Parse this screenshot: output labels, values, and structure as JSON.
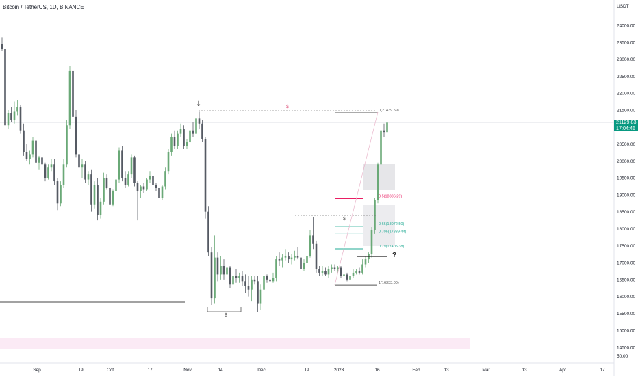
{
  "symbol_title": "Bitcoin / TetherUS, 1D, BINANCE",
  "currency": "USDT",
  "current_price": "21129.83",
  "countdown": "17:04:46",
  "volume_label": "50.00",
  "colors": {
    "up": "#6aa977",
    "down": "#555a63",
    "accent": "#089981",
    "fib_red": "#e91e63",
    "fib_green": "#22ab94"
  },
  "chart_data": {
    "type": "candlestick",
    "title": "Bitcoin / TetherUS, 1D, BINANCE",
    "ylim": [
      14400,
      24800
    ],
    "y_ticks": [
      "24000.00",
      "23500.00",
      "23000.00",
      "22500.00",
      "22000.00",
      "21500.00",
      "21000.00",
      "20500.00",
      "20000.00",
      "19500.00",
      "19000.00",
      "18500.00",
      "18000.00",
      "17500.00",
      "17000.00",
      "16500.00",
      "16000.00",
      "15500.00",
      "15000.00",
      "14500.00"
    ],
    "x_ticks": [
      "Sep",
      "19",
      "Oct",
      "17",
      "Nov",
      "14",
      "Dec",
      "19",
      "2023",
      "16",
      "Feb",
      "13",
      "Mar",
      "13",
      "Apr",
      "17"
    ],
    "grid": false,
    "fib_levels": [
      {
        "label": "0(21439.59)",
        "value": 21439.59,
        "color": "#555"
      },
      {
        "label": "0.5(18886.29)",
        "value": 18886.29,
        "color": "#e91e63"
      },
      {
        "label": "0.66(18072.50)",
        "value": 18072.5,
        "color": "#22ab94"
      },
      {
        "label": "0.705(17839.44)",
        "value": 17839.44,
        "color": "#22ab94"
      },
      {
        "label": "0.79(17405.38)",
        "value": 17405.38,
        "color": "#22ab94"
      },
      {
        "label": "1(16333.00)",
        "value": 16333.0,
        "color": "#555"
      }
    ],
    "annotations": [
      "$",
      "$",
      "$",
      "?"
    ],
    "candles": [
      {
        "o": 23450,
        "h": 23650,
        "l": 23250,
        "c": 23300
      },
      {
        "o": 23300,
        "h": 23350,
        "l": 20950,
        "c": 21050
      },
      {
        "o": 21050,
        "h": 21500,
        "l": 20950,
        "c": 21400
      },
      {
        "o": 21400,
        "h": 21600,
        "l": 21150,
        "c": 21200
      },
      {
        "o": 21200,
        "h": 21750,
        "l": 21100,
        "c": 21450
      },
      {
        "o": 21450,
        "h": 21800,
        "l": 21350,
        "c": 21600
      },
      {
        "o": 21600,
        "h": 21650,
        "l": 20800,
        "c": 20900
      },
      {
        "o": 20900,
        "h": 21100,
        "l": 20150,
        "c": 20250
      },
      {
        "o": 20250,
        "h": 20500,
        "l": 20000,
        "c": 20050
      },
      {
        "o": 20050,
        "h": 20300,
        "l": 19900,
        "c": 20200
      },
      {
        "o": 20200,
        "h": 20700,
        "l": 20100,
        "c": 20600
      },
      {
        "o": 20600,
        "h": 20750,
        "l": 19900,
        "c": 19950
      },
      {
        "o": 19950,
        "h": 20150,
        "l": 19750,
        "c": 20100
      },
      {
        "o": 20100,
        "h": 20400,
        "l": 19850,
        "c": 19900
      },
      {
        "o": 19900,
        "h": 19950,
        "l": 19400,
        "c": 19500
      },
      {
        "o": 19500,
        "h": 19900,
        "l": 19450,
        "c": 19800
      },
      {
        "o": 19800,
        "h": 20050,
        "l": 19700,
        "c": 19900
      },
      {
        "o": 19900,
        "h": 20050,
        "l": 19300,
        "c": 19400
      },
      {
        "o": 19400,
        "h": 19500,
        "l": 18550,
        "c": 18750
      },
      {
        "o": 18750,
        "h": 19400,
        "l": 18650,
        "c": 19300
      },
      {
        "o": 19300,
        "h": 20050,
        "l": 19200,
        "c": 19900
      },
      {
        "o": 19900,
        "h": 21200,
        "l": 19800,
        "c": 21050
      },
      {
        "o": 21050,
        "h": 22800,
        "l": 20950,
        "c": 22650
      },
      {
        "o": 22650,
        "h": 22850,
        "l": 21100,
        "c": 21300
      },
      {
        "o": 21300,
        "h": 21500,
        "l": 20100,
        "c": 20200
      },
      {
        "o": 20200,
        "h": 20350,
        "l": 19750,
        "c": 19800
      },
      {
        "o": 19800,
        "h": 20050,
        "l": 19500,
        "c": 19900
      },
      {
        "o": 19900,
        "h": 20000,
        "l": 19350,
        "c": 19450
      },
      {
        "o": 19450,
        "h": 19700,
        "l": 19300,
        "c": 19600
      },
      {
        "o": 19600,
        "h": 19750,
        "l": 18500,
        "c": 18700
      },
      {
        "o": 18700,
        "h": 19400,
        "l": 18600,
        "c": 19300
      },
      {
        "o": 19300,
        "h": 19500,
        "l": 18250,
        "c": 18400
      },
      {
        "o": 18400,
        "h": 18900,
        "l": 18300,
        "c": 18800
      },
      {
        "o": 18800,
        "h": 19650,
        "l": 18700,
        "c": 19500
      },
      {
        "o": 19500,
        "h": 19600,
        "l": 19150,
        "c": 19200
      },
      {
        "o": 19200,
        "h": 19350,
        "l": 18600,
        "c": 18700
      },
      {
        "o": 18700,
        "h": 19150,
        "l": 18650,
        "c": 19100
      },
      {
        "o": 19100,
        "h": 19600,
        "l": 19000,
        "c": 19450
      },
      {
        "o": 19450,
        "h": 20400,
        "l": 19350,
        "c": 20300
      },
      {
        "o": 20300,
        "h": 20450,
        "l": 19400,
        "c": 19500
      },
      {
        "o": 19500,
        "h": 19700,
        "l": 19200,
        "c": 19300
      },
      {
        "o": 19300,
        "h": 19700,
        "l": 19250,
        "c": 19600
      },
      {
        "o": 19600,
        "h": 20200,
        "l": 19500,
        "c": 20100
      },
      {
        "o": 20100,
        "h": 20150,
        "l": 19250,
        "c": 19350
      },
      {
        "o": 19350,
        "h": 19400,
        "l": 18250,
        "c": 19100
      },
      {
        "o": 19100,
        "h": 19300,
        "l": 18900,
        "c": 19250
      },
      {
        "o": 19250,
        "h": 19350,
        "l": 19050,
        "c": 19150
      },
      {
        "o": 19150,
        "h": 19500,
        "l": 19100,
        "c": 19450
      },
      {
        "o": 19450,
        "h": 19700,
        "l": 19350,
        "c": 19550
      },
      {
        "o": 19550,
        "h": 19650,
        "l": 19250,
        "c": 19300
      },
      {
        "o": 19300,
        "h": 19350,
        "l": 19100,
        "c": 19200
      },
      {
        "o": 19200,
        "h": 19350,
        "l": 18700,
        "c": 18900
      },
      {
        "o": 18900,
        "h": 19300,
        "l": 18850,
        "c": 19250
      },
      {
        "o": 19250,
        "h": 19800,
        "l": 19150,
        "c": 19700
      },
      {
        "o": 19700,
        "h": 20350,
        "l": 19600,
        "c": 20250
      },
      {
        "o": 20250,
        "h": 20800,
        "l": 20150,
        "c": 20700
      },
      {
        "o": 20700,
        "h": 20900,
        "l": 20350,
        "c": 20450
      },
      {
        "o": 20450,
        "h": 20900,
        "l": 20350,
        "c": 20800
      },
      {
        "o": 20800,
        "h": 21100,
        "l": 20700,
        "c": 20950
      },
      {
        "o": 20950,
        "h": 21050,
        "l": 20350,
        "c": 20450
      },
      {
        "o": 20450,
        "h": 20650,
        "l": 20350,
        "c": 20550
      },
      {
        "o": 20550,
        "h": 21000,
        "l": 20450,
        "c": 20900
      },
      {
        "o": 20900,
        "h": 21150,
        "l": 20700,
        "c": 20800
      },
      {
        "o": 20800,
        "h": 21350,
        "l": 20750,
        "c": 21250
      },
      {
        "o": 21250,
        "h": 21450,
        "l": 20950,
        "c": 21100
      },
      {
        "o": 21100,
        "h": 21200,
        "l": 20550,
        "c": 20650
      },
      {
        "o": 20650,
        "h": 20700,
        "l": 18300,
        "c": 18500
      },
      {
        "o": 18500,
        "h": 18650,
        "l": 17200,
        "c": 17300
      },
      {
        "o": 17300,
        "h": 17450,
        "l": 15750,
        "c": 15950
      },
      {
        "o": 15950,
        "h": 17800,
        "l": 15800,
        "c": 17150
      },
      {
        "o": 17150,
        "h": 17300,
        "l": 16450,
        "c": 16650
      },
      {
        "o": 16650,
        "h": 17200,
        "l": 16500,
        "c": 16900
      },
      {
        "o": 16900,
        "h": 17100,
        "l": 16500,
        "c": 16650
      },
      {
        "o": 16650,
        "h": 16950,
        "l": 16500,
        "c": 16850
      },
      {
        "o": 16850,
        "h": 16900,
        "l": 16250,
        "c": 16350
      },
      {
        "o": 16350,
        "h": 16750,
        "l": 15800,
        "c": 16600
      },
      {
        "o": 16600,
        "h": 16800,
        "l": 16400,
        "c": 16550
      },
      {
        "o": 16550,
        "h": 16700,
        "l": 16400,
        "c": 16600
      },
      {
        "o": 16600,
        "h": 16750,
        "l": 16300,
        "c": 16450
      },
      {
        "o": 16450,
        "h": 16650,
        "l": 16100,
        "c": 16300
      },
      {
        "o": 16300,
        "h": 16600,
        "l": 16000,
        "c": 16200
      },
      {
        "o": 16200,
        "h": 16600,
        "l": 15850,
        "c": 16500
      },
      {
        "o": 16500,
        "h": 16600,
        "l": 16350,
        "c": 16450
      },
      {
        "o": 16450,
        "h": 16600,
        "l": 15550,
        "c": 15800
      },
      {
        "o": 15800,
        "h": 16350,
        "l": 15600,
        "c": 16200
      },
      {
        "o": 16200,
        "h": 16700,
        "l": 16100,
        "c": 16600
      },
      {
        "o": 16600,
        "h": 16650,
        "l": 16400,
        "c": 16500
      },
      {
        "o": 16500,
        "h": 16600,
        "l": 16350,
        "c": 16450
      },
      {
        "o": 16450,
        "h": 16700,
        "l": 16400,
        "c": 16550
      },
      {
        "o": 16550,
        "h": 17200,
        "l": 16450,
        "c": 17100
      },
      {
        "o": 17100,
        "h": 17300,
        "l": 16900,
        "c": 17050
      },
      {
        "o": 17050,
        "h": 17250,
        "l": 16850,
        "c": 17150
      },
      {
        "o": 17150,
        "h": 17400,
        "l": 17050,
        "c": 17200
      },
      {
        "o": 17200,
        "h": 17300,
        "l": 17000,
        "c": 17100
      },
      {
        "o": 17100,
        "h": 17250,
        "l": 16950,
        "c": 17150
      },
      {
        "o": 17150,
        "h": 17350,
        "l": 17050,
        "c": 17200
      },
      {
        "o": 17200,
        "h": 17450,
        "l": 17100,
        "c": 17150
      },
      {
        "o": 17150,
        "h": 17300,
        "l": 16700,
        "c": 16800
      },
      {
        "o": 16800,
        "h": 17100,
        "l": 16750,
        "c": 17000
      },
      {
        "o": 17000,
        "h": 17450,
        "l": 16950,
        "c": 17200
      },
      {
        "o": 17200,
        "h": 17950,
        "l": 17150,
        "c": 17800
      },
      {
        "o": 17800,
        "h": 18350,
        "l": 17400,
        "c": 17550
      },
      {
        "o": 17550,
        "h": 17650,
        "l": 16700,
        "c": 16800
      },
      {
        "o": 16800,
        "h": 16900,
        "l": 16600,
        "c": 16700
      },
      {
        "o": 16700,
        "h": 16900,
        "l": 16600,
        "c": 16750
      },
      {
        "o": 16750,
        "h": 16850,
        "l": 16600,
        "c": 16650
      },
      {
        "o": 16650,
        "h": 16900,
        "l": 16550,
        "c": 16800
      },
      {
        "o": 16800,
        "h": 16950,
        "l": 16700,
        "c": 16850
      },
      {
        "o": 16850,
        "h": 16950,
        "l": 16750,
        "c": 16800
      },
      {
        "o": 16800,
        "h": 16900,
        "l": 16700,
        "c": 16850
      },
      {
        "o": 16850,
        "h": 16900,
        "l": 16550,
        "c": 16600
      },
      {
        "o": 16600,
        "h": 16750,
        "l": 16550,
        "c": 16650
      },
      {
        "o": 16650,
        "h": 16700,
        "l": 16450,
        "c": 16500
      },
      {
        "o": 16500,
        "h": 16750,
        "l": 16450,
        "c": 16600
      },
      {
        "o": 16600,
        "h": 16800,
        "l": 16550,
        "c": 16700
      },
      {
        "o": 16700,
        "h": 16800,
        "l": 16650,
        "c": 16750
      },
      {
        "o": 16750,
        "h": 16850,
        "l": 16650,
        "c": 16700
      },
      {
        "o": 16700,
        "h": 17100,
        "l": 16650,
        "c": 16950
      },
      {
        "o": 16950,
        "h": 17200,
        "l": 16850,
        "c": 17100
      },
      {
        "o": 17100,
        "h": 17300,
        "l": 17000,
        "c": 17250
      },
      {
        "o": 17250,
        "h": 18050,
        "l": 17150,
        "c": 17950
      },
      {
        "o": 17950,
        "h": 18900,
        "l": 17850,
        "c": 18850
      },
      {
        "o": 18850,
        "h": 19950,
        "l": 18750,
        "c": 19900
      },
      {
        "o": 19900,
        "h": 21000,
        "l": 19850,
        "c": 20900
      },
      {
        "o": 20900,
        "h": 21100,
        "l": 20700,
        "c": 20850
      },
      {
        "o": 20850,
        "h": 21450,
        "l": 20800,
        "c": 21129.83
      }
    ]
  }
}
